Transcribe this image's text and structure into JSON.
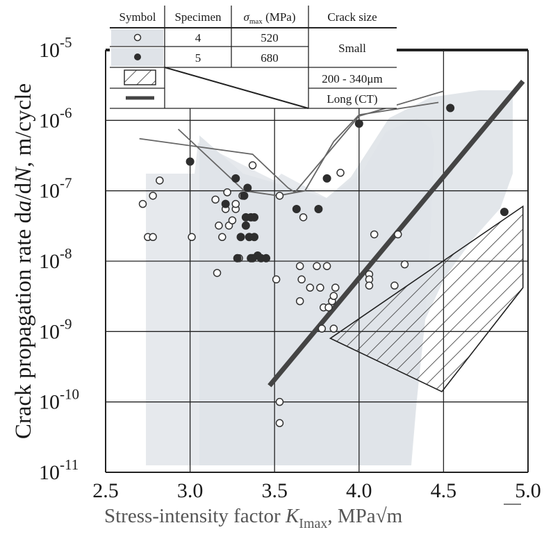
{
  "chart_data": {
    "type": "scatter",
    "title": "",
    "xlabel_main": "Stress-intensity factor ",
    "xlabel_var": "K",
    "xlabel_sub": "Imax",
    "xlabel_unit": ",  MPa",
    "xlabel_sqrt": "√m",
    "ylabel_pre": "Crack propagation rate  d",
    "ylabel_a": "a",
    "ylabel_mid": "/d",
    "ylabel_N": "N",
    "ylabel_post": ", m/cycle",
    "xlim": [
      2.5,
      5.0
    ],
    "ylim_exp": [
      -11,
      -5
    ],
    "y_log": true,
    "grid": true,
    "x_ticks": [
      "2.5",
      "3.0",
      "3.5",
      "4.0",
      "4.5",
      "5.0"
    ],
    "y_tick_exps": [
      -11,
      -10,
      -9,
      -8,
      -7,
      -6,
      -5
    ],
    "y_tick_base": "10",
    "legend_table": {
      "headers": [
        "Symbol",
        "Specimen",
        "σ",
        "max",
        " (MPa)",
        "Crack size"
      ],
      "rows": [
        {
          "specimen": "4",
          "sigma": "520"
        },
        {
          "specimen": "5",
          "sigma": "680"
        }
      ],
      "small_label": "Small",
      "mid_label": "200 - 340μm",
      "long_label": "Long (CT)"
    },
    "series": [
      {
        "name": "Specimen 4",
        "marker": "open-circle",
        "points": [
          [
            2.72,
            6.5e-08
          ],
          [
            2.75,
            2.2e-08
          ],
          [
            2.78,
            2.2e-08
          ],
          [
            2.78,
            8.5e-08
          ],
          [
            2.82,
            1.4e-07
          ],
          [
            3.01,
            2.2e-08
          ],
          [
            3.15,
            7.5e-08
          ],
          [
            3.16,
            6.8e-09
          ],
          [
            3.17,
            3.2e-08
          ],
          [
            3.19,
            2.2e-08
          ],
          [
            3.21,
            5.5e-08
          ],
          [
            3.22,
            9.5e-08
          ],
          [
            3.23,
            3.2e-08
          ],
          [
            3.25,
            3.8e-08
          ],
          [
            3.27,
            5.5e-08
          ],
          [
            3.27,
            6.5e-08
          ],
          [
            3.28,
            1.1e-08
          ],
          [
            3.29,
            1.1e-08
          ],
          [
            3.31,
            8.5e-08
          ],
          [
            3.37,
            2.3e-07
          ],
          [
            3.51,
            5.5e-09
          ],
          [
            3.53,
            1e-10
          ],
          [
            3.53,
            5e-11
          ],
          [
            3.53,
            8.5e-08
          ],
          [
            3.65,
            8.5e-09
          ],
          [
            3.65,
            2.7e-09
          ],
          [
            3.66,
            5.5e-09
          ],
          [
            3.67,
            4.2e-08
          ],
          [
            3.71,
            4.2e-09
          ],
          [
            3.75,
            8.5e-09
          ],
          [
            3.77,
            4.2e-09
          ],
          [
            3.78,
            1.1e-09
          ],
          [
            3.79,
            2.2e-09
          ],
          [
            3.81,
            8.5e-09
          ],
          [
            3.82,
            2.2e-09
          ],
          [
            3.84,
            2.7e-09
          ],
          [
            3.85,
            1.1e-09
          ],
          [
            3.85,
            3.2e-09
          ],
          [
            3.86,
            4.2e-09
          ],
          [
            3.89,
            1.8e-07
          ],
          [
            4.06,
            6.5e-09
          ],
          [
            4.06,
            5.5e-09
          ],
          [
            4.06,
            4.5e-09
          ],
          [
            4.09,
            2.4e-08
          ],
          [
            4.21,
            4.5e-09
          ],
          [
            4.23,
            2.4e-08
          ],
          [
            4.27,
            9e-09
          ]
        ]
      },
      {
        "name": "Specimen 5",
        "marker": "filled-circle",
        "points": [
          [
            3.0,
            2.6e-07
          ],
          [
            3.21,
            6.5e-08
          ],
          [
            3.27,
            1.5e-07
          ],
          [
            3.28,
            1.1e-08
          ],
          [
            3.3,
            2.2e-08
          ],
          [
            3.32,
            8.5e-08
          ],
          [
            3.33,
            3.2e-08
          ],
          [
            3.33,
            4.2e-08
          ],
          [
            3.34,
            1.1e-07
          ],
          [
            3.35,
            2.2e-08
          ],
          [
            3.36,
            1.1e-08
          ],
          [
            3.36,
            4.2e-08
          ],
          [
            3.37,
            1.1e-08
          ],
          [
            3.38,
            2.2e-08
          ],
          [
            3.38,
            4.2e-08
          ],
          [
            3.4,
            1.2e-08
          ],
          [
            3.42,
            1.1e-08
          ],
          [
            3.45,
            1.1e-08
          ],
          [
            3.63,
            5.5e-08
          ],
          [
            3.76,
            5.5e-08
          ],
          [
            3.81,
            1.5e-07
          ],
          [
            4.0,
            9e-07
          ],
          [
            4.54,
            1.5e-06
          ],
          [
            4.86,
            5e-08
          ]
        ]
      }
    ],
    "long_crack_line": [
      [
        3.47,
        1.7e-10
      ],
      [
        4.97,
        3.6e-06
      ]
    ],
    "scatter_envelope_1": [
      [
        2.7,
        5.5e-07
      ],
      [
        3.37,
        3.3e-07
      ],
      [
        3.58,
        1.1e-07
      ],
      [
        3.62,
        9.5e-08
      ],
      [
        4.0,
        1.15e-06
      ],
      [
        4.5,
        2.6e-06
      ]
    ],
    "scatter_envelope_2": [
      [
        2.93,
        7.5e-07
      ],
      [
        3.32,
        1e-07
      ],
      [
        3.52,
        8.5e-08
      ],
      [
        3.68,
        1e-07
      ],
      [
        3.85,
        5e-07
      ],
      [
        4.0,
        1.2e-06
      ],
      [
        4.47,
        1.8e-06
      ]
    ],
    "hatched_region": [
      [
        3.83,
        8e-10
      ],
      [
        4.49,
        1.4e-10
      ],
      [
        4.97,
        4.2e-09
      ],
      [
        4.97,
        6e-08
      ]
    ],
    "colors": {
      "open_marker_fill": "#ffffff",
      "marker_stroke": "#333333",
      "filled_marker": "#2e2e2e",
      "long_crack_line": "#444444",
      "envelope_line": "#666666",
      "shade": "#dfe3e8",
      "grid": "#222222",
      "tick_x": "#555555"
    }
  }
}
